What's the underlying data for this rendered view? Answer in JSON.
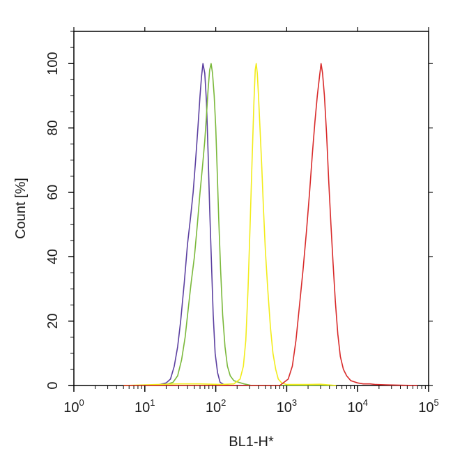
{
  "chart_data": {
    "type": "line",
    "title": "",
    "xlabel": "BL1-H*",
    "ylabel": "Count  [%]",
    "x_scale": "log",
    "xlim": [
      1,
      100000
    ],
    "ylim": [
      0,
      110
    ],
    "grid": false,
    "legend": "none",
    "x_ticks": [
      {
        "value": 1,
        "label": "10",
        "exp": "0"
      },
      {
        "value": 10,
        "label": "10",
        "exp": "1"
      },
      {
        "value": 100,
        "label": "10",
        "exp": "2"
      },
      {
        "value": 1000,
        "label": "10",
        "exp": "3"
      },
      {
        "value": 10000,
        "label": "10",
        "exp": "4"
      },
      {
        "value": 100000,
        "label": "10",
        "exp": "5"
      }
    ],
    "y_ticks": [
      {
        "value": 0,
        "label": "0"
      },
      {
        "value": 20,
        "label": "20"
      },
      {
        "value": 40,
        "label": "40"
      },
      {
        "value": 60,
        "label": "60"
      },
      {
        "value": 80,
        "label": "80"
      },
      {
        "value": 100,
        "label": "100"
      }
    ],
    "series": [
      {
        "color": "#5b3fa0",
        "points": [
          [
            5,
            0
          ],
          [
            12,
            0
          ],
          [
            16,
            0.3
          ],
          [
            20,
            0.8
          ],
          [
            23,
            2
          ],
          [
            26,
            6
          ],
          [
            29,
            12
          ],
          [
            32,
            20
          ],
          [
            36,
            32
          ],
          [
            40,
            44
          ],
          [
            44,
            52
          ],
          [
            48,
            60
          ],
          [
            52,
            70
          ],
          [
            56,
            80
          ],
          [
            60,
            90
          ],
          [
            63,
            96
          ],
          [
            66,
            100
          ],
          [
            70,
            97
          ],
          [
            74,
            88
          ],
          [
            78,
            72
          ],
          [
            82,
            55
          ],
          [
            87,
            38
          ],
          [
            92,
            22
          ],
          [
            98,
            10
          ],
          [
            106,
            4
          ],
          [
            115,
            1
          ],
          [
            130,
            0.3
          ],
          [
            160,
            0
          ],
          [
            5000,
            0
          ]
        ]
      },
      {
        "color": "#7ab83a",
        "points": [
          [
            5,
            0
          ],
          [
            14,
            0
          ],
          [
            20,
            0.3
          ],
          [
            25,
            1
          ],
          [
            29,
            3
          ],
          [
            33,
            8
          ],
          [
            37,
            15
          ],
          [
            41,
            24
          ],
          [
            45,
            32
          ],
          [
            50,
            40
          ],
          [
            55,
            50
          ],
          [
            60,
            60
          ],
          [
            65,
            68
          ],
          [
            70,
            76
          ],
          [
            74,
            84
          ],
          [
            78,
            92
          ],
          [
            82,
            98
          ],
          [
            86,
            100
          ],
          [
            90,
            97
          ],
          [
            95,
            90
          ],
          [
            100,
            80
          ],
          [
            105,
            66
          ],
          [
            110,
            52
          ],
          [
            117,
            36
          ],
          [
            125,
            22
          ],
          [
            135,
            12
          ],
          [
            146,
            6
          ],
          [
            160,
            3
          ],
          [
            180,
            1.5
          ],
          [
            210,
            1
          ],
          [
            250,
            0.5
          ],
          [
            320,
            0
          ],
          [
            5000,
            0
          ]
        ]
      },
      {
        "color": "#f2ec1a",
        "points": [
          [
            5,
            0
          ],
          [
            30,
            0.5
          ],
          [
            60,
            0.5
          ],
          [
            120,
            0.3
          ],
          [
            180,
            0.5
          ],
          [
            220,
            2
          ],
          [
            245,
            6
          ],
          [
            265,
            14
          ],
          [
            285,
            30
          ],
          [
            305,
            50
          ],
          [
            325,
            70
          ],
          [
            345,
            88
          ],
          [
            360,
            98
          ],
          [
            372,
            100
          ],
          [
            385,
            97
          ],
          [
            400,
            90
          ],
          [
            420,
            80
          ],
          [
            445,
            68
          ],
          [
            470,
            55
          ],
          [
            500,
            42
          ],
          [
            540,
            30
          ],
          [
            590,
            18
          ],
          [
            640,
            10
          ],
          [
            700,
            5
          ],
          [
            760,
            2
          ],
          [
            850,
            0.8
          ],
          [
            1000,
            0.3
          ],
          [
            2000,
            0.3
          ],
          [
            3000,
            0.4
          ],
          [
            5000,
            0
          ]
        ]
      },
      {
        "color": "#d82a2a",
        "points": [
          [
            5,
            0
          ],
          [
            300,
            0
          ],
          [
            800,
            0
          ],
          [
            1050,
            2
          ],
          [
            1200,
            6
          ],
          [
            1350,
            14
          ],
          [
            1500,
            24
          ],
          [
            1700,
            36
          ],
          [
            1900,
            48
          ],
          [
            2100,
            60
          ],
          [
            2300,
            72
          ],
          [
            2500,
            82
          ],
          [
            2700,
            90
          ],
          [
            2900,
            96
          ],
          [
            3050,
            100
          ],
          [
            3200,
            97
          ],
          [
            3400,
            90
          ],
          [
            3650,
            78
          ],
          [
            3900,
            64
          ],
          [
            4200,
            50
          ],
          [
            4500,
            38
          ],
          [
            4850,
            26
          ],
          [
            5250,
            16
          ],
          [
            5700,
            9
          ],
          [
            6300,
            5
          ],
          [
            7000,
            3
          ],
          [
            8000,
            1.5
          ],
          [
            10000,
            0.8
          ],
          [
            12000,
            0.5
          ],
          [
            15000,
            0.5
          ],
          [
            18000,
            0.3
          ],
          [
            25000,
            0.2
          ],
          [
            40000,
            0.1
          ],
          [
            70000,
            0
          ]
        ]
      }
    ]
  }
}
